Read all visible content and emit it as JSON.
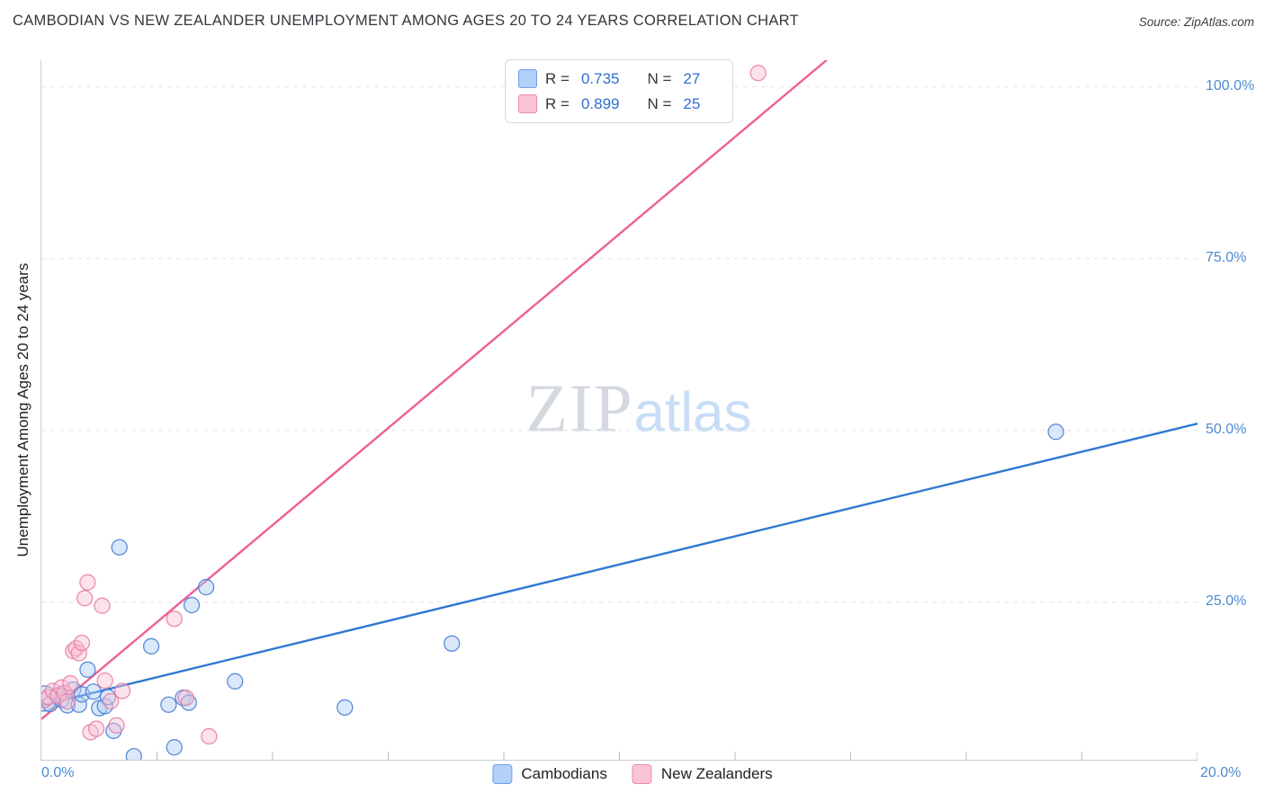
{
  "header": {
    "title": "CAMBODIAN VS NEW ZEALANDER UNEMPLOYMENT AMONG AGES 20 TO 24 YEARS CORRELATION CHART",
    "source": "Source: ZipAtlas.com"
  },
  "watermark": {
    "zip": "ZIP",
    "atlas": "atlas"
  },
  "axes": {
    "y_label": "Unemployment Among Ages 20 to 24 years",
    "x_min_label": "0.0%",
    "x_max_label": "20.0%",
    "y_tick_labels": [
      "100.0%",
      "75.0%",
      "50.0%",
      "25.0%"
    ]
  },
  "legend_box": {
    "rows": [
      {
        "r_label": "R =",
        "r_value": "0.735",
        "n_label": "N =",
        "n_value": "27"
      },
      {
        "r_label": "R =",
        "r_value": "0.899",
        "n_label": "N =",
        "n_value": "25"
      }
    ]
  },
  "bottom_legend": {
    "items": [
      {
        "label": "Cambodians"
      },
      {
        "label": "New Zealanders"
      }
    ]
  },
  "colors": {
    "tick_label": "#4d8bd1",
    "grid": "#e4e6e8",
    "axis": "#c9cdd1",
    "blue_fill": "#aecbf5",
    "blue_stroke": "#4a7fd4",
    "blue_line": "#2e78d2",
    "pink_fill": "#f9c0d2",
    "pink_stroke": "#e87fa8",
    "pink_line": "#ee5f94"
  },
  "chart_data": {
    "type": "scatter",
    "title": "CAMBODIAN VS NEW ZEALANDER UNEMPLOYMENT AMONG AGES 20 TO 24 YEARS CORRELATION CHART",
    "xlabel": "",
    "ylabel": "Unemployment Among Ages 20 to 24 years",
    "x_unit": "%",
    "y_unit": "%",
    "x_range": [
      0,
      20
    ],
    "y_range": [
      0,
      104
    ],
    "gridlines_y": [
      25,
      50,
      75,
      100
    ],
    "x_ticks": [
      2,
      4,
      6,
      8,
      10,
      12,
      14,
      16,
      18,
      20
    ],
    "grid_style": "dashed",
    "legend_position": "top-center",
    "series": [
      {
        "name": "Cambodians",
        "R": 0.735,
        "N": 27,
        "fill": "#aecbf5",
        "stroke": "#4a7fd4",
        "line_color": "#2e78d2",
        "trend_line": {
          "x1": 0,
          "y1": 10,
          "x2": 20,
          "y2": 51
        },
        "points": [
          [
            0.05,
            11.0,
            14
          ],
          [
            0.15,
            10.2
          ],
          [
            0.3,
            11.5
          ],
          [
            0.35,
            10.8
          ],
          [
            0.45,
            10.0
          ],
          [
            0.55,
            12.3
          ],
          [
            0.65,
            10.1
          ],
          [
            0.7,
            11.6
          ],
          [
            0.8,
            15.2
          ],
          [
            0.9,
            12.0
          ],
          [
            1.0,
            9.6
          ],
          [
            1.1,
            9.9
          ],
          [
            1.15,
            11.2
          ],
          [
            1.25,
            6.3
          ],
          [
            1.35,
            33.0
          ],
          [
            1.6,
            2.6
          ],
          [
            1.9,
            18.6
          ],
          [
            2.2,
            10.1
          ],
          [
            2.3,
            3.9
          ],
          [
            2.45,
            11.1
          ],
          [
            2.55,
            10.4
          ],
          [
            2.6,
            24.6
          ],
          [
            2.85,
            27.2
          ],
          [
            3.35,
            13.5
          ],
          [
            5.25,
            9.7
          ],
          [
            7.1,
            19.0
          ],
          [
            17.55,
            49.8
          ]
        ]
      },
      {
        "name": "New Zealanders",
        "R": 0.899,
        "N": 25,
        "fill": "#f9c0d2",
        "stroke": "#e87fa8",
        "line_color": "#ee5f94",
        "trend_line": {
          "x1": 0,
          "y1": 8,
          "x2": 13.6,
          "y2": 104
        },
        "points": [
          [
            0.05,
            10.8
          ],
          [
            0.12,
            11.2
          ],
          [
            0.2,
            12.1
          ],
          [
            0.28,
            11.4
          ],
          [
            0.35,
            12.6
          ],
          [
            0.4,
            11.8
          ],
          [
            0.45,
            10.6
          ],
          [
            0.5,
            13.2
          ],
          [
            0.55,
            17.9
          ],
          [
            0.6,
            18.3
          ],
          [
            0.65,
            17.6
          ],
          [
            0.7,
            19.1
          ],
          [
            0.75,
            25.6
          ],
          [
            0.8,
            27.9
          ],
          [
            0.85,
            6.1
          ],
          [
            0.95,
            6.6
          ],
          [
            1.05,
            24.5
          ],
          [
            1.1,
            13.6
          ],
          [
            1.2,
            10.6
          ],
          [
            1.3,
            7.1
          ],
          [
            1.4,
            12.1
          ],
          [
            2.3,
            22.6
          ],
          [
            2.5,
            11.1
          ],
          [
            2.9,
            5.5
          ],
          [
            12.4,
            102.0
          ]
        ]
      }
    ]
  }
}
